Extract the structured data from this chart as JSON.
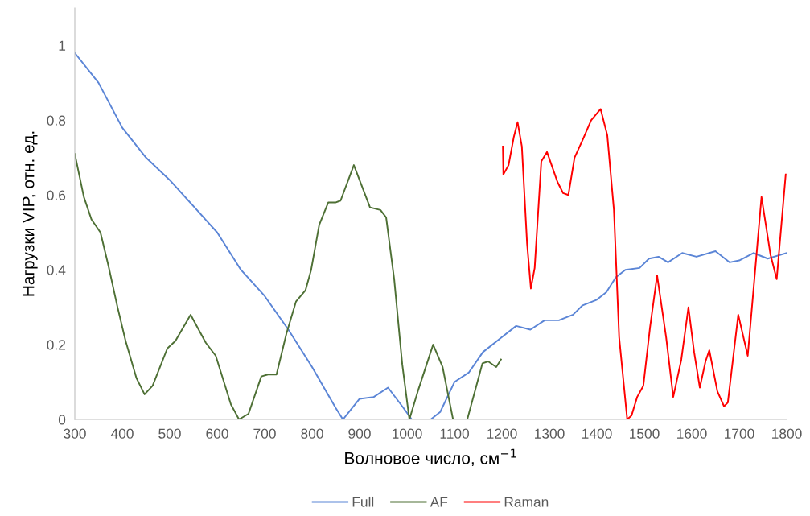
{
  "chart_data": {
    "type": "line",
    "xlabel": "Волновое число, см$^{−1}$",
    "ylabel": "Нагрузки VIP, отн. ед.",
    "xlim": [
      300,
      1800
    ],
    "ylim": [
      0,
      1.1
    ],
    "xticks": [
      300,
      400,
      500,
      600,
      700,
      800,
      900,
      1000,
      1100,
      1200,
      1300,
      1400,
      1500,
      1600,
      1700,
      1800
    ],
    "yticks": [
      0,
      0.2,
      0.4,
      0.6,
      0.8,
      1
    ],
    "grid": false,
    "legend": "bottom",
    "series": [
      {
        "name": "Full",
        "color": "#5b85d6",
        "x": [
          300,
          350,
          400,
          450,
          500,
          550,
          600,
          650,
          700,
          750,
          800,
          850,
          865,
          900,
          930,
          960,
          990,
          1010,
          1050,
          1070,
          1100,
          1130,
          1160,
          1200,
          1230,
          1260,
          1290,
          1320,
          1350,
          1370,
          1400,
          1420,
          1440,
          1460,
          1490,
          1510,
          1530,
          1550,
          1580,
          1610,
          1650,
          1680,
          1700,
          1730,
          1760,
          1800
        ],
        "values": [
          0.98,
          0.9,
          0.78,
          0.7,
          0.64,
          0.57,
          0.5,
          0.4,
          0.33,
          0.24,
          0.14,
          0.03,
          0.0,
          0.055,
          0.06,
          0.085,
          0.035,
          0.0,
          0.0,
          0.02,
          0.1,
          0.125,
          0.18,
          0.22,
          0.25,
          0.24,
          0.265,
          0.265,
          0.28,
          0.305,
          0.32,
          0.34,
          0.38,
          0.4,
          0.405,
          0.43,
          0.435,
          0.42,
          0.445,
          0.435,
          0.45,
          0.42,
          0.425,
          0.445,
          0.43,
          0.445
        ]
      },
      {
        "name": "AF",
        "color": "#4e7035",
        "x": [
          300,
          319,
          335,
          354,
          371,
          390,
          407,
          430,
          447,
          464,
          495,
          512,
          544,
          576,
          597,
          629,
          646,
          666,
          693,
          707,
          725,
          746,
          766,
          786,
          798,
          815,
          834,
          849,
          860,
          888,
          922,
          944,
          956,
          973,
          990,
          1005,
          1024,
          1055,
          1075,
          1097,
          1122,
          1127,
          1159,
          1171,
          1188,
          1198
        ],
        "values": [
          0.71,
          0.595,
          0.535,
          0.5,
          0.41,
          0.3,
          0.21,
          0.11,
          0.067,
          0.09,
          0.19,
          0.21,
          0.28,
          0.205,
          0.17,
          0.04,
          0.0,
          0.015,
          0.115,
          0.12,
          0.12,
          0.23,
          0.315,
          0.345,
          0.4,
          0.52,
          0.58,
          0.58,
          0.585,
          0.68,
          0.567,
          0.56,
          0.54,
          0.375,
          0.147,
          0.0,
          0.08,
          0.2,
          0.14,
          0.0,
          0.0,
          0.0,
          0.15,
          0.155,
          0.14,
          0.16
        ]
      },
      {
        "name": "Raman",
        "color": "#ff0000",
        "x": [
          1202,
          1203,
          1214,
          1225,
          1233,
          1242,
          1253,
          1261,
          1269,
          1283,
          1295,
          1306,
          1317,
          1329,
          1340,
          1353,
          1371,
          1388,
          1408,
          1422,
          1436,
          1447,
          1464,
          1473,
          1485,
          1498,
          1512,
          1527,
          1546,
          1561,
          1578,
          1593,
          1605,
          1617,
          1629,
          1637,
          1654,
          1668,
          1676,
          1698,
          1718,
          1747,
          1766,
          1779,
          1798
        ],
        "values": [
          0.73,
          0.655,
          0.68,
          0.755,
          0.795,
          0.73,
          0.47,
          0.35,
          0.405,
          0.69,
          0.715,
          0.675,
          0.635,
          0.605,
          0.6,
          0.7,
          0.75,
          0.8,
          0.83,
          0.76,
          0.56,
          0.22,
          0.0,
          0.01,
          0.06,
          0.09,
          0.245,
          0.385,
          0.22,
          0.06,
          0.16,
          0.3,
          0.18,
          0.085,
          0.155,
          0.185,
          0.075,
          0.035,
          0.045,
          0.28,
          0.17,
          0.595,
          0.44,
          0.375,
          0.655
        ]
      }
    ]
  }
}
